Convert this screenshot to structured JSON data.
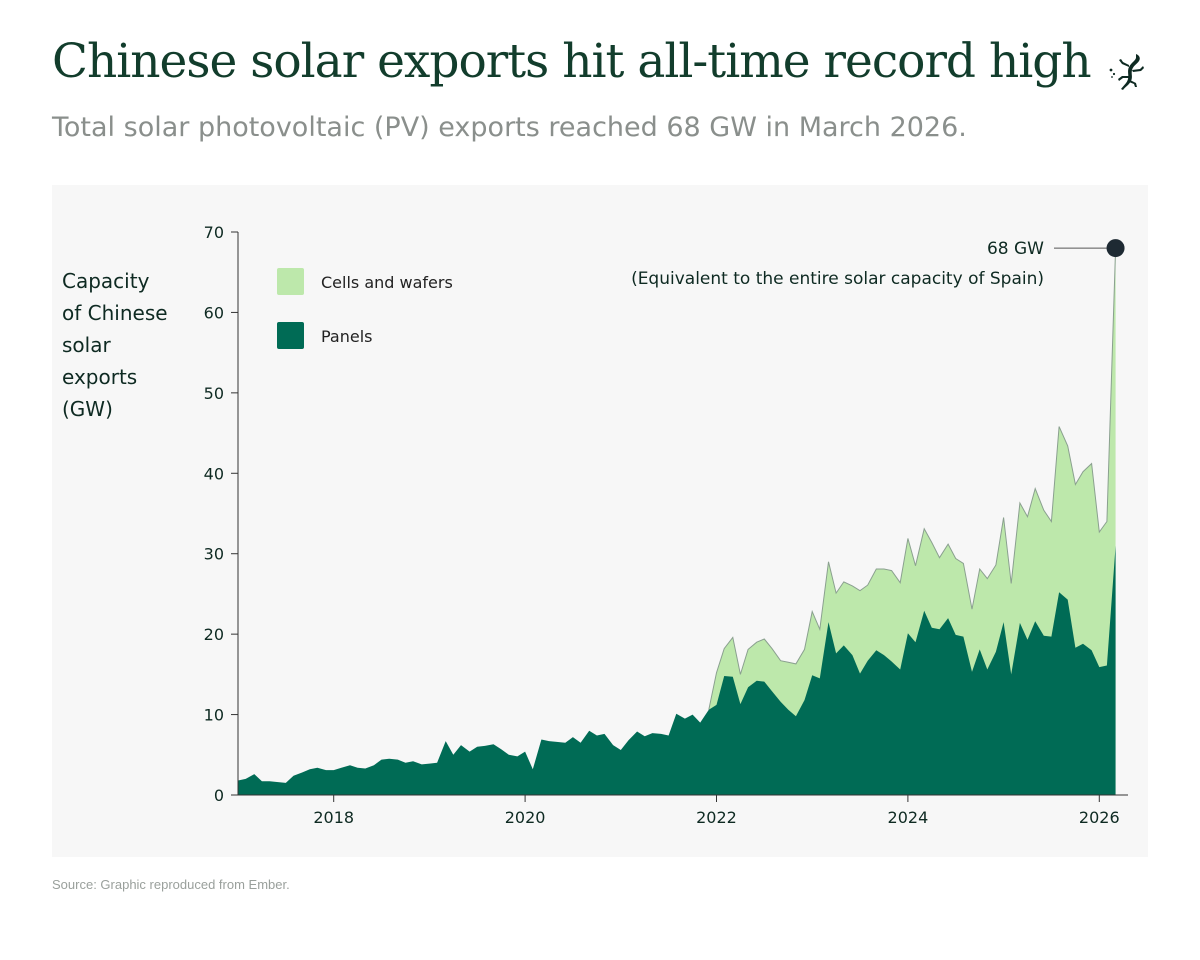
{
  "title": "Chinese solar exports hit all-time record high",
  "subtitle": "Total solar photovoltaic (PV) exports reached 68 GW in March 2026.",
  "logo_icon": "gecko-icon",
  "source": "Source: Graphic reproduced from Ember.",
  "colors": {
    "panels": "#006b55",
    "cells_and_wafers": "#bde8ab",
    "title": "#123d2c",
    "subtitle": "#8a8f8c",
    "panel_background": "#f7f7f7"
  },
  "chart_data": {
    "type": "area",
    "stacked": true,
    "ylabel_lines": [
      "Capacity",
      "of Chinese",
      "solar",
      "exports",
      "(GW)"
    ],
    "ylim": [
      0,
      70
    ],
    "yticks": [
      0,
      10,
      20,
      30,
      40,
      50,
      60,
      70
    ],
    "xlim": [
      2017.0,
      2026.3
    ],
    "xticks": [
      2018,
      2020,
      2022,
      2024,
      2026
    ],
    "grid": false,
    "legend_placement": "top-left",
    "annotation": {
      "label": "68 GW",
      "note": "(Equivalent to the entire solar capacity of Spain)",
      "x": 2026.17,
      "y": 68
    },
    "series": [
      {
        "name": "Panels",
        "points": [
          [
            2017.0,
            1.8
          ],
          [
            2017.08,
            2.0
          ],
          [
            2017.17,
            2.6
          ],
          [
            2017.25,
            1.7
          ],
          [
            2017.33,
            1.7
          ],
          [
            2017.42,
            1.6
          ],
          [
            2017.5,
            1.5
          ],
          [
            2017.58,
            2.4
          ],
          [
            2017.67,
            2.8
          ],
          [
            2017.75,
            3.2
          ],
          [
            2017.83,
            3.4
          ],
          [
            2017.92,
            3.1
          ],
          [
            2018.0,
            3.1
          ],
          [
            2018.08,
            3.4
          ],
          [
            2018.17,
            3.7
          ],
          [
            2018.25,
            3.4
          ],
          [
            2018.33,
            3.3
          ],
          [
            2018.42,
            3.7
          ],
          [
            2018.5,
            4.4
          ],
          [
            2018.58,
            4.5
          ],
          [
            2018.67,
            4.4
          ],
          [
            2018.75,
            4.0
          ],
          [
            2018.83,
            4.2
          ],
          [
            2018.92,
            3.8
          ],
          [
            2019.0,
            3.9
          ],
          [
            2019.08,
            4.0
          ],
          [
            2019.17,
            6.7
          ],
          [
            2019.25,
            5.0
          ],
          [
            2019.33,
            6.2
          ],
          [
            2019.42,
            5.4
          ],
          [
            2019.5,
            6.0
          ],
          [
            2019.58,
            6.1
          ],
          [
            2019.67,
            6.3
          ],
          [
            2019.75,
            5.7
          ],
          [
            2019.83,
            5.0
          ],
          [
            2019.92,
            4.8
          ],
          [
            2020.0,
            5.4
          ],
          [
            2020.08,
            3.2
          ],
          [
            2020.17,
            6.9
          ],
          [
            2020.25,
            6.7
          ],
          [
            2020.33,
            6.6
          ],
          [
            2020.42,
            6.5
          ],
          [
            2020.5,
            7.2
          ],
          [
            2020.58,
            6.5
          ],
          [
            2020.67,
            8.0
          ],
          [
            2020.75,
            7.4
          ],
          [
            2020.83,
            7.6
          ],
          [
            2020.92,
            6.2
          ],
          [
            2021.0,
            5.6
          ],
          [
            2021.08,
            6.8
          ],
          [
            2021.17,
            7.9
          ],
          [
            2021.25,
            7.3
          ],
          [
            2021.33,
            7.7
          ],
          [
            2021.42,
            7.6
          ],
          [
            2021.5,
            7.4
          ],
          [
            2021.58,
            10.1
          ],
          [
            2021.67,
            9.5
          ],
          [
            2021.75,
            10.0
          ],
          [
            2021.83,
            9.0
          ],
          [
            2021.92,
            10.6
          ],
          [
            2022.0,
            11.2
          ],
          [
            2022.08,
            14.8
          ],
          [
            2022.17,
            14.7
          ],
          [
            2022.25,
            11.3
          ],
          [
            2022.33,
            13.4
          ],
          [
            2022.42,
            14.2
          ],
          [
            2022.5,
            14.1
          ],
          [
            2022.58,
            12.9
          ],
          [
            2022.67,
            11.6
          ],
          [
            2022.75,
            10.6
          ],
          [
            2022.83,
            9.8
          ],
          [
            2022.92,
            11.8
          ],
          [
            2023.0,
            14.9
          ],
          [
            2023.08,
            14.5
          ],
          [
            2023.17,
            21.5
          ],
          [
            2023.25,
            17.6
          ],
          [
            2023.33,
            18.6
          ],
          [
            2023.42,
            17.4
          ],
          [
            2023.5,
            15.1
          ],
          [
            2023.58,
            16.7
          ],
          [
            2023.67,
            18.0
          ],
          [
            2023.75,
            17.4
          ],
          [
            2023.83,
            16.6
          ],
          [
            2023.92,
            15.6
          ],
          [
            2024.0,
            20.1
          ],
          [
            2024.08,
            19.0
          ],
          [
            2024.17,
            22.9
          ],
          [
            2024.25,
            20.8
          ],
          [
            2024.33,
            20.6
          ],
          [
            2024.42,
            22.0
          ],
          [
            2024.5,
            19.9
          ],
          [
            2024.58,
            19.7
          ],
          [
            2024.67,
            15.3
          ],
          [
            2024.75,
            18.1
          ],
          [
            2024.83,
            15.6
          ],
          [
            2024.92,
            17.8
          ],
          [
            2025.0,
            21.5
          ],
          [
            2025.08,
            15.0
          ],
          [
            2025.17,
            21.4
          ],
          [
            2025.25,
            19.3
          ],
          [
            2025.33,
            21.6
          ],
          [
            2025.42,
            19.8
          ],
          [
            2025.5,
            19.7
          ],
          [
            2025.58,
            25.2
          ],
          [
            2025.67,
            24.3
          ],
          [
            2025.75,
            18.3
          ],
          [
            2025.83,
            18.8
          ],
          [
            2025.92,
            18.0
          ],
          [
            2026.0,
            15.9
          ],
          [
            2026.08,
            16.1
          ],
          [
            2026.17,
            31.0
          ]
        ]
      },
      {
        "name": "Cells and wafers",
        "points": [
          [
            2021.92,
            10.6
          ],
          [
            2022.0,
            15.2
          ],
          [
            2022.08,
            18.2
          ],
          [
            2022.17,
            19.6
          ],
          [
            2022.25,
            15.0
          ],
          [
            2022.33,
            18.1
          ],
          [
            2022.42,
            19.0
          ],
          [
            2022.5,
            19.4
          ],
          [
            2022.58,
            18.2
          ],
          [
            2022.67,
            16.7
          ],
          [
            2022.75,
            16.5
          ],
          [
            2022.83,
            16.3
          ],
          [
            2022.92,
            18.1
          ],
          [
            2023.0,
            22.8
          ],
          [
            2023.08,
            20.6
          ],
          [
            2023.17,
            29.0
          ],
          [
            2023.25,
            25.1
          ],
          [
            2023.33,
            26.5
          ],
          [
            2023.42,
            26.0
          ],
          [
            2023.5,
            25.4
          ],
          [
            2023.58,
            26.1
          ],
          [
            2023.67,
            28.1
          ],
          [
            2023.75,
            28.1
          ],
          [
            2023.83,
            27.9
          ],
          [
            2023.92,
            26.4
          ],
          [
            2024.0,
            31.9
          ],
          [
            2024.08,
            28.5
          ],
          [
            2024.17,
            33.1
          ],
          [
            2024.25,
            31.4
          ],
          [
            2024.33,
            29.5
          ],
          [
            2024.42,
            31.2
          ],
          [
            2024.5,
            29.4
          ],
          [
            2024.58,
            28.8
          ],
          [
            2024.67,
            23.1
          ],
          [
            2024.75,
            28.1
          ],
          [
            2024.83,
            26.9
          ],
          [
            2024.92,
            28.6
          ],
          [
            2025.0,
            34.5
          ],
          [
            2025.08,
            26.3
          ],
          [
            2025.17,
            36.3
          ],
          [
            2025.25,
            34.6
          ],
          [
            2025.33,
            38.1
          ],
          [
            2025.42,
            35.4
          ],
          [
            2025.5,
            34.0
          ],
          [
            2025.58,
            45.8
          ],
          [
            2025.67,
            43.4
          ],
          [
            2025.75,
            38.6
          ],
          [
            2025.83,
            40.2
          ],
          [
            2025.92,
            41.2
          ],
          [
            2026.0,
            32.7
          ],
          [
            2026.08,
            34.0
          ],
          [
            2026.17,
            68.0
          ]
        ]
      }
    ]
  }
}
